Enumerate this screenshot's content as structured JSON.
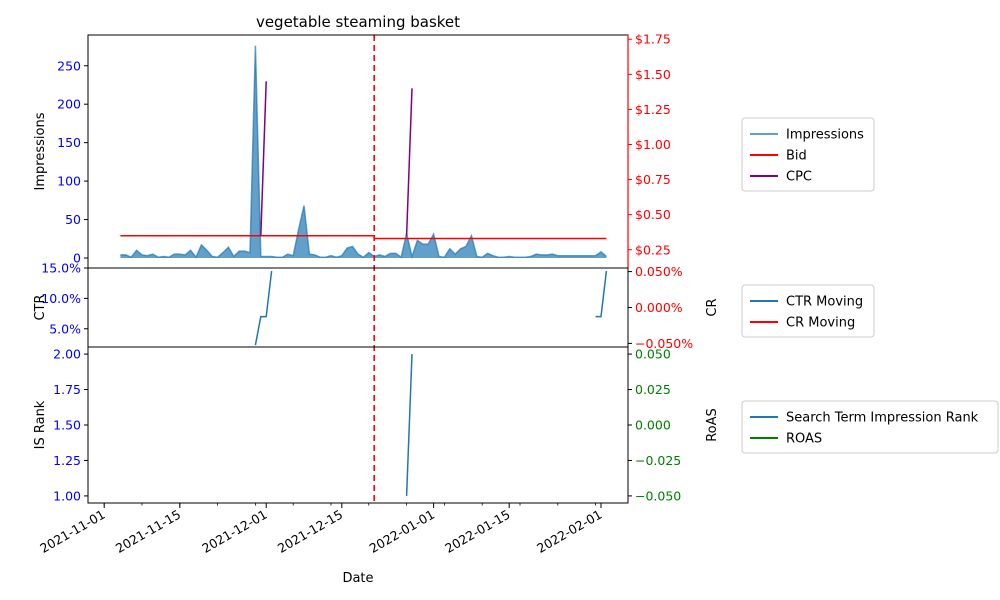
{
  "chart_data": {
    "type": "line",
    "title": "vegetable steaming basket",
    "xlabel": "Date",
    "x_ticks": [
      "2021-11-01",
      "2021-11-15",
      "2021-12-01",
      "2021-12-15",
      "2022-01-01",
      "2022-01-15",
      "2022-02-01"
    ],
    "x_range": [
      "2021-10-29",
      "2022-02-06"
    ],
    "event_date": "2021-12-21",
    "event_color": "#ff0000",
    "panels": [
      {
        "id": "impressions",
        "left_axis": {
          "label": "Impressions",
          "ylim": [
            -13,
            290
          ],
          "ticks": [
            0,
            50,
            100,
            150,
            200,
            250
          ],
          "tick_labels": [
            "0",
            "50",
            "100",
            "150",
            "200",
            "250"
          ],
          "tick_color": "#0000ff"
        },
        "right_axis": {
          "label": "",
          "ylim": [
            0.12,
            1.78
          ],
          "ticks": [
            0.25,
            0.5,
            0.75,
            1.0,
            1.25,
            1.5,
            1.75
          ],
          "tick_labels": [
            "$0.25",
            "$0.50",
            "$0.75",
            "$1.00",
            "$1.25",
            "$1.50",
            "$1.75"
          ],
          "tick_color": "#ff0000",
          "spine_color": "#ff0000"
        },
        "series": [
          {
            "name": "Impressions",
            "axis": "left",
            "kind": "area",
            "color": "#1f77b4",
            "x": [
              "2021-11-04",
              "2021-11-05",
              "2021-11-06",
              "2021-11-07",
              "2021-11-08",
              "2021-11-09",
              "2021-11-10",
              "2021-11-11",
              "2021-11-12",
              "2021-11-13",
              "2021-11-14",
              "2021-11-15",
              "2021-11-16",
              "2021-11-17",
              "2021-11-18",
              "2021-11-19",
              "2021-11-20",
              "2021-11-21",
              "2021-11-22",
              "2021-11-23",
              "2021-11-24",
              "2021-11-25",
              "2021-11-26",
              "2021-11-27",
              "2021-11-28",
              "2021-11-29",
              "2021-11-30",
              "2021-12-01",
              "2021-12-02",
              "2021-12-03",
              "2021-12-04",
              "2021-12-05",
              "2021-12-06",
              "2021-12-07",
              "2021-12-08",
              "2021-12-09",
              "2021-12-10",
              "2021-12-11",
              "2021-12-12",
              "2021-12-13",
              "2021-12-14",
              "2021-12-15",
              "2021-12-16",
              "2021-12-17",
              "2021-12-18",
              "2021-12-19",
              "2021-12-20",
              "2021-12-21",
              "2021-12-22",
              "2021-12-23",
              "2021-12-24",
              "2021-12-25",
              "2021-12-26",
              "2021-12-27",
              "2021-12-28",
              "2021-12-29",
              "2021-12-30",
              "2021-12-31",
              "2022-01-01",
              "2022-01-02",
              "2022-01-03",
              "2022-01-04",
              "2022-01-05",
              "2022-01-06",
              "2022-01-07",
              "2022-01-08",
              "2022-01-09",
              "2022-01-10",
              "2022-01-11",
              "2022-01-12",
              "2022-01-13",
              "2022-01-14",
              "2022-01-15",
              "2022-01-16",
              "2022-01-17",
              "2022-01-18",
              "2022-01-19",
              "2022-01-20",
              "2022-01-21",
              "2022-01-22",
              "2022-01-23",
              "2022-01-24",
              "2022-01-25",
              "2022-01-26",
              "2022-01-27",
              "2022-01-28",
              "2022-01-29",
              "2022-01-30",
              "2022-01-31",
              "2022-02-01",
              "2022-02-02"
            ],
            "values": [
              4,
              4,
              1,
              10,
              4,
              3,
              5,
              1,
              2,
              1,
              5,
              5,
              4,
              10,
              1,
              17,
              10,
              2,
              1,
              7,
              14,
              2,
              9,
              9,
              7,
              276,
              2,
              2,
              2,
              1,
              1,
              5,
              3,
              37,
              68,
              5,
              4,
              1,
              1,
              3,
              1,
              3,
              13,
              15,
              5,
              1,
              7,
              2,
              4,
              2,
              6,
              6,
              1,
              32,
              2,
              23,
              18,
              18,
              31,
              2,
              1,
              12,
              5,
              12,
              15,
              29,
              2,
              1,
              6,
              3,
              1,
              1,
              2,
              1,
              1,
              1,
              2,
              5,
              4,
              4,
              5,
              3,
              3,
              3,
              3,
              3,
              3,
              3,
              3,
              8,
              2
            ]
          },
          {
            "name": "Bid",
            "axis": "right",
            "kind": "step",
            "color": "#ff0000",
            "x": [
              "2021-11-04",
              "2021-12-21",
              "2021-12-21",
              "2022-02-02"
            ],
            "values": [
              0.35,
              0.35,
              0.33,
              0.33
            ]
          },
          {
            "name": "CPC",
            "axis": "right",
            "kind": "line",
            "color": "#800080",
            "segments": [
              {
                "x": [
                  "2021-11-30",
                  "2021-12-01"
                ],
                "values": [
                  0.35,
                  1.45
                ]
              },
              {
                "x": [
                  "2021-12-27",
                  "2021-12-28"
                ],
                "values": [
                  0.35,
                  1.4
                ]
              }
            ]
          }
        ],
        "legend": {
          "placement": "right",
          "entries": [
            "Impressions",
            "Bid",
            "CPC"
          ]
        }
      },
      {
        "id": "ctr",
        "left_axis": {
          "label": "CTR",
          "ylim": [
            2.0,
            15.0
          ],
          "ticks": [
            5.0,
            10.0,
            15.0
          ],
          "tick_labels": [
            "5.0%",
            "10.0%",
            "15.0%"
          ],
          "tick_color": "#0000ff"
        },
        "right_axis": {
          "label": "CR",
          "ylim": [
            -0.055,
            0.055
          ],
          "ticks": [
            -0.05,
            0.0,
            0.05
          ],
          "tick_labels": [
            "−0.050%",
            "0.000%",
            "0.050%"
          ],
          "tick_color": "#ff0000"
        },
        "series": [
          {
            "name": "CTR Moving",
            "axis": "left",
            "kind": "line",
            "color": "#1f77b4",
            "segments": [
              {
                "x": [
                  "2021-11-29",
                  "2021-11-30",
                  "2021-12-01",
                  "2021-12-02"
                ],
                "values": [
                  2.3,
                  7.0,
                  7.0,
                  14.5
                ]
              },
              {
                "x": [
                  "2022-01-31",
                  "2022-02-01",
                  "2022-02-02"
                ],
                "values": [
                  7.0,
                  7.0,
                  14.5
                ]
              }
            ]
          },
          {
            "name": "CR Moving",
            "axis": "right",
            "kind": "line",
            "color": "#ff0000",
            "segments": []
          }
        ],
        "legend": {
          "placement": "right",
          "entries": [
            "CTR Moving",
            "CR Moving"
          ]
        }
      },
      {
        "id": "rank",
        "left_axis": {
          "label": "IS Rank",
          "ylim": [
            0.95,
            2.05
          ],
          "ticks": [
            1.0,
            1.25,
            1.5,
            1.75,
            2.0
          ],
          "tick_labels": [
            "1.00",
            "1.25",
            "1.50",
            "1.75",
            "2.00"
          ],
          "tick_color": "#0000ff"
        },
        "right_axis": {
          "label": "RoAS",
          "ylim": [
            -0.055,
            0.055
          ],
          "ticks": [
            -0.05,
            -0.025,
            0.0,
            0.025,
            0.05
          ],
          "tick_labels": [
            "−0.050",
            "−0.025",
            "0.000",
            "0.025",
            "0.050"
          ],
          "tick_color": "#008000"
        },
        "series": [
          {
            "name": "Search Term Impression Rank",
            "axis": "left",
            "kind": "line",
            "color": "#1f77b4",
            "segments": [
              {
                "x": [
                  "2021-12-27",
                  "2021-12-28"
                ],
                "values": [
                  1.0,
                  2.0
                ]
              }
            ]
          },
          {
            "name": "ROAS",
            "axis": "right",
            "kind": "line",
            "color": "#008000",
            "segments": []
          }
        ],
        "legend": {
          "placement": "right",
          "entries": [
            "Search Term Impression Rank",
            "ROAS"
          ]
        }
      }
    ],
    "grid": false
  }
}
